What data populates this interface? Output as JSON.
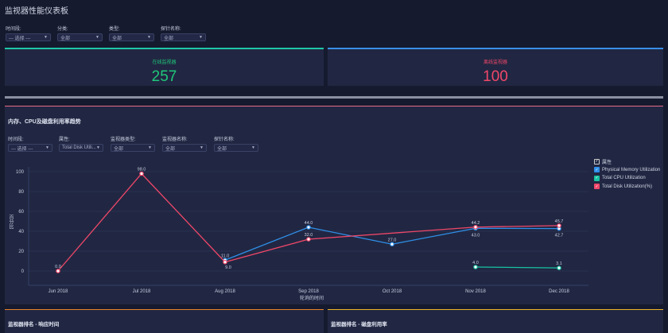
{
  "title": "监视器性能仪表板",
  "filters": [
    {
      "label": "时间段:",
      "value": "--- 选择 ---"
    },
    {
      "label": "分类:",
      "value": "全部"
    },
    {
      "label": "类型:",
      "value": "全部"
    },
    {
      "label": "探针名称:",
      "value": "全部"
    }
  ],
  "stats": {
    "online": {
      "label": "在线监视器",
      "value": "257",
      "color": "#1fc77a"
    },
    "offline": {
      "label": "离线监视器",
      "value": "100",
      "color": "#f0476a"
    }
  },
  "trend": {
    "title": "内存、CPU及磁盘利用率趋势",
    "filters": [
      {
        "label": "时间段:",
        "value": "--- 选择 ---"
      },
      {
        "label": "属性:",
        "value": "Total Disk Utili..."
      },
      {
        "label": "监视器类型:",
        "value": "全部"
      },
      {
        "label": "监视器名称:",
        "value": "全部"
      },
      {
        "label": "探针名称:",
        "value": "全部"
      }
    ],
    "legend_title": "属性"
  },
  "chart_data": {
    "type": "line",
    "xlabel": "轮询的时间",
    "ylabel": "百分比",
    "categories": [
      "Jun 2018",
      "Jul 2018",
      "Aug 2018",
      "Sep 2018",
      "Oct 2018",
      "Nov 2018",
      "Dec 2018"
    ],
    "yticks": [
      0,
      20,
      40,
      60,
      80,
      100
    ],
    "ylim": [
      -3,
      100
    ],
    "series": [
      {
        "name": "Physical Memory Utilization",
        "color": "#2f8fe8",
        "values": [
          null,
          null,
          11.0,
          44.0,
          27.0,
          43.0,
          42.7
        ]
      },
      {
        "name": "Total CPU Utilization",
        "color": "#17c2a2",
        "values": [
          null,
          null,
          null,
          null,
          null,
          4.0,
          3.1
        ]
      },
      {
        "name": "Total Disk Utilization(%)",
        "color": "#f0476a",
        "values": [
          0.0,
          98.0,
          9.0,
          32.0,
          null,
          44.2,
          45.7
        ]
      }
    ]
  },
  "bottom": {
    "left_title": "监视器排名 - 响应时间",
    "right_title": "监视器排名 - 磁盘利用率"
  }
}
